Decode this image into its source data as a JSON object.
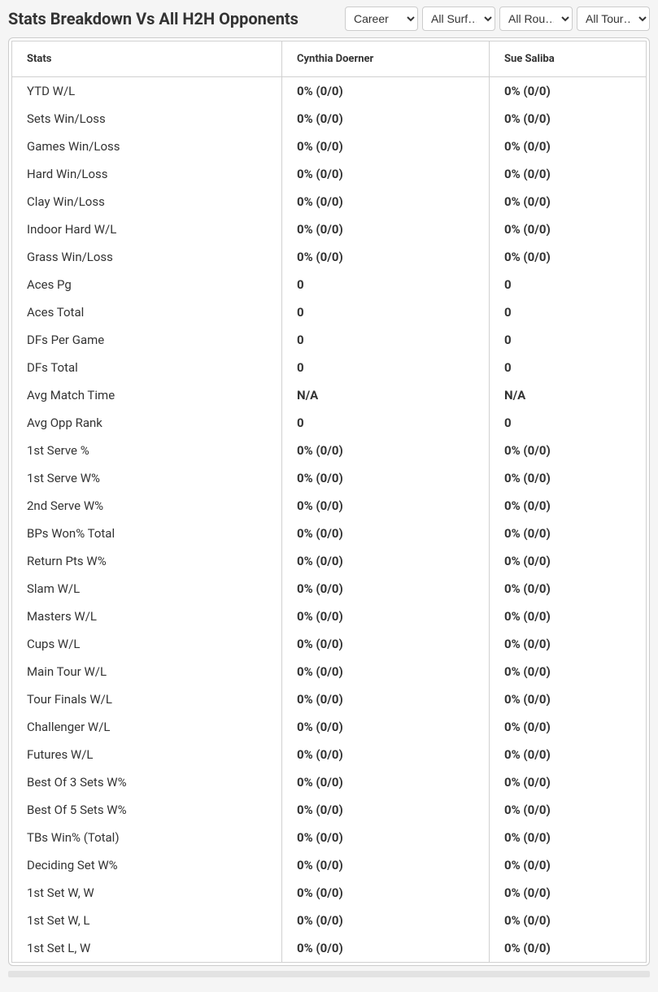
{
  "title": "Stats Breakdown Vs All H2H Opponents",
  "filters": {
    "career": "Career",
    "surface": "All Surf…",
    "round": "All Rou…",
    "tour": "All Tour…"
  },
  "columns": {
    "stats": "Stats",
    "player1": "Cynthia Doerner",
    "player2": "Sue Saliba"
  },
  "rows": [
    {
      "label": "YTD W/L",
      "p1": "0% (0/0)",
      "p2": "0% (0/0)"
    },
    {
      "label": "Sets Win/Loss",
      "p1": "0% (0/0)",
      "p2": "0% (0/0)"
    },
    {
      "label": "Games Win/Loss",
      "p1": "0% (0/0)",
      "p2": "0% (0/0)"
    },
    {
      "label": "Hard Win/Loss",
      "p1": "0% (0/0)",
      "p2": "0% (0/0)"
    },
    {
      "label": "Clay Win/Loss",
      "p1": "0% (0/0)",
      "p2": "0% (0/0)"
    },
    {
      "label": "Indoor Hard W/L",
      "p1": "0% (0/0)",
      "p2": "0% (0/0)"
    },
    {
      "label": "Grass Win/Loss",
      "p1": "0% (0/0)",
      "p2": "0% (0/0)"
    },
    {
      "label": "Aces Pg",
      "p1": "0",
      "p2": "0"
    },
    {
      "label": "Aces Total",
      "p1": "0",
      "p2": "0"
    },
    {
      "label": "DFs Per Game",
      "p1": "0",
      "p2": "0"
    },
    {
      "label": "DFs Total",
      "p1": "0",
      "p2": "0"
    },
    {
      "label": "Avg Match Time",
      "p1": "N/A",
      "p2": "N/A"
    },
    {
      "label": "Avg Opp Rank",
      "p1": "0",
      "p2": "0"
    },
    {
      "label": "1st Serve %",
      "p1": "0% (0/0)",
      "p2": "0% (0/0)"
    },
    {
      "label": "1st Serve W%",
      "p1": "0% (0/0)",
      "p2": "0% (0/0)"
    },
    {
      "label": "2nd Serve W%",
      "p1": "0% (0/0)",
      "p2": "0% (0/0)"
    },
    {
      "label": "BPs Won% Total",
      "p1": "0% (0/0)",
      "p2": "0% (0/0)"
    },
    {
      "label": "Return Pts W%",
      "p1": "0% (0/0)",
      "p2": "0% (0/0)"
    },
    {
      "label": "Slam W/L",
      "p1": "0% (0/0)",
      "p2": "0% (0/0)"
    },
    {
      "label": "Masters W/L",
      "p1": "0% (0/0)",
      "p2": "0% (0/0)"
    },
    {
      "label": "Cups W/L",
      "p1": "0% (0/0)",
      "p2": "0% (0/0)"
    },
    {
      "label": "Main Tour W/L",
      "p1": "0% (0/0)",
      "p2": "0% (0/0)"
    },
    {
      "label": "Tour Finals W/L",
      "p1": "0% (0/0)",
      "p2": "0% (0/0)"
    },
    {
      "label": "Challenger W/L",
      "p1": "0% (0/0)",
      "p2": "0% (0/0)"
    },
    {
      "label": "Futures W/L",
      "p1": "0% (0/0)",
      "p2": "0% (0/0)"
    },
    {
      "label": "Best Of 3 Sets W%",
      "p1": "0% (0/0)",
      "p2": "0% (0/0)"
    },
    {
      "label": "Best Of 5 Sets W%",
      "p1": "0% (0/0)",
      "p2": "0% (0/0)"
    },
    {
      "label": "TBs Win% (Total)",
      "p1": "0% (0/0)",
      "p2": "0% (0/0)"
    },
    {
      "label": "Deciding Set W%",
      "p1": "0% (0/0)",
      "p2": "0% (0/0)"
    },
    {
      "label": "1st Set W, W",
      "p1": "0% (0/0)",
      "p2": "0% (0/0)"
    },
    {
      "label": "1st Set W, L",
      "p1": "0% (0/0)",
      "p2": "0% (0/0)"
    },
    {
      "label": "1st Set L, W",
      "p1": "0% (0/0)",
      "p2": "0% (0/0)"
    }
  ]
}
